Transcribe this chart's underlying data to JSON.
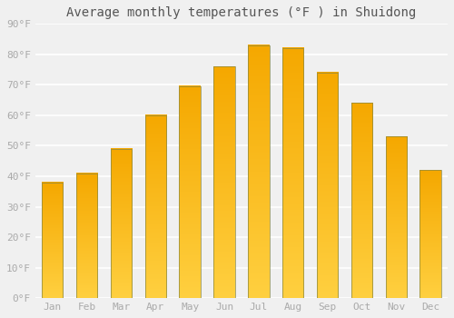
{
  "title": "Average monthly temperatures (°F ) in Shuidong",
  "months": [
    "Jan",
    "Feb",
    "Mar",
    "Apr",
    "May",
    "Jun",
    "Jul",
    "Aug",
    "Sep",
    "Oct",
    "Nov",
    "Dec"
  ],
  "values": [
    38,
    41,
    49,
    60,
    69.5,
    76,
    83,
    82,
    74,
    64,
    53,
    42
  ],
  "bar_color_dark": "#F5A800",
  "bar_color_light": "#FFD040",
  "bar_edge_color": "#888844",
  "background_color": "#F0F0F0",
  "grid_color": "#FFFFFF",
  "ylim": [
    0,
    90
  ],
  "yticks": [
    0,
    10,
    20,
    30,
    40,
    50,
    60,
    70,
    80,
    90
  ],
  "ytick_labels": [
    "0°F",
    "10°F",
    "20°F",
    "30°F",
    "40°F",
    "50°F",
    "60°F",
    "70°F",
    "80°F",
    "90°F"
  ],
  "title_fontsize": 10,
  "tick_fontsize": 8,
  "title_color": "#555555",
  "font_color": "#AAAAAA"
}
